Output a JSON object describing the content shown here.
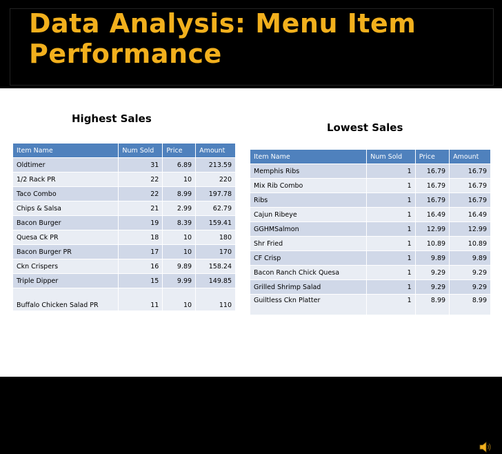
{
  "slide": {
    "title_line1": "Data Analysis: Menu Item",
    "title_line2": "Performance",
    "colors": {
      "title": "#f2b01d",
      "header": "#4f81bd",
      "row_odd": "#d0d8e8",
      "row_even": "#e9edf4"
    }
  },
  "highest": {
    "heading": "Highest Sales",
    "columns": [
      "Item Name",
      "Num Sold",
      "Price",
      "Amount"
    ],
    "rows": [
      [
        "Oldtimer",
        "31",
        "6.89",
        "213.59"
      ],
      [
        "1/2 Rack PR",
        "22",
        "10",
        "220"
      ],
      [
        "Taco Combo",
        "22",
        "8.99",
        "197.78"
      ],
      [
        "Chips & Salsa",
        "21",
        "2.99",
        "62.79"
      ],
      [
        "Bacon Burger",
        "19",
        "8.39",
        "159.41"
      ],
      [
        "Quesa Ck PR",
        "18",
        "10",
        "180"
      ],
      [
        "Bacon Burger PR",
        "17",
        "10",
        "170"
      ],
      [
        "Ckn Crispers",
        "16",
        "9.89",
        "158.24"
      ],
      [
        "Triple Dipper",
        "15",
        "9.99",
        "149.85"
      ],
      [
        "Buffalo Chicken Salad PR",
        "11",
        "10",
        "110"
      ]
    ]
  },
  "lowest": {
    "heading": "Lowest Sales",
    "columns": [
      "Item Name",
      "Num Sold",
      "Price",
      "Amount"
    ],
    "rows": [
      [
        "Memphis Ribs",
        "1",
        "16.79",
        "16.79"
      ],
      [
        "Mix Rib Combo",
        "1",
        "16.79",
        "16.79"
      ],
      [
        "Ribs",
        "1",
        "16.79",
        "16.79"
      ],
      [
        "Cajun Ribeye",
        "1",
        "16.49",
        "16.49"
      ],
      [
        "GGHMSalmon",
        "1",
        "12.99",
        "12.99"
      ],
      [
        "Shr Fried",
        "1",
        "10.89",
        "10.89"
      ],
      [
        "CF Crisp",
        "1",
        "9.89",
        "9.89"
      ],
      [
        "Bacon Ranch Chick Quesa",
        "1",
        "9.29",
        "9.29"
      ],
      [
        "Grilled Shrimp Salad",
        "1",
        "9.29",
        "9.29"
      ],
      [
        "Guiltless Ckn Platter",
        "1",
        "8.99",
        "8.99"
      ]
    ]
  },
  "icons": {
    "audio": "speaker-icon"
  }
}
